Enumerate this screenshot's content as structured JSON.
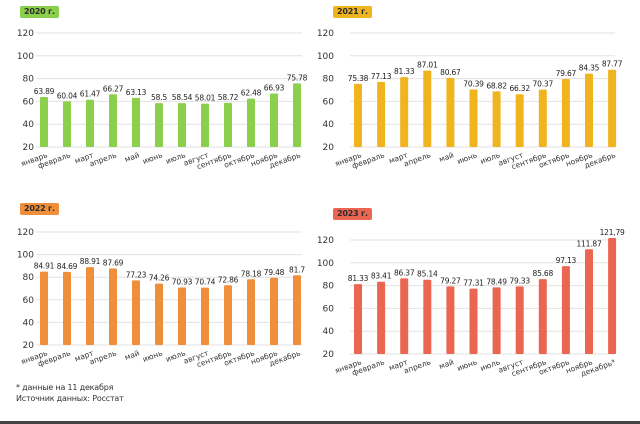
{
  "chart_data": [
    {
      "type": "bar",
      "title": "2020 г.",
      "color": "#8ccf4d",
      "categories": [
        "январь",
        "февраль",
        "март",
        "апрель",
        "май",
        "июнь",
        "июль",
        "август",
        "сентябрь",
        "октябрь",
        "ноябрь",
        "декабрь"
      ],
      "values": [
        63.89,
        60.04,
        61.47,
        66.27,
        63.13,
        58.5,
        58.54,
        58.01,
        58.72,
        62.48,
        66.93,
        75.78
      ],
      "value_labels": [
        "63.89",
        "60.04",
        "61.47",
        "66.27",
        "63.13",
        "58.5",
        "58.54",
        "58.01",
        "58.72",
        "62.48",
        "66.93",
        "75.78"
      ],
      "yticks": [
        20,
        40,
        60,
        80,
        100,
        120
      ],
      "ylim": [
        20,
        120
      ],
      "grid": true,
      "xlabel": "",
      "ylabel": ""
    },
    {
      "type": "bar",
      "title": "2021 г.",
      "color": "#f0b51e",
      "categories": [
        "январь",
        "февраль",
        "март",
        "апрель",
        "май",
        "июнь",
        "июль",
        "август",
        "сентябрь",
        "октябрь",
        "ноябрь",
        "декабрь"
      ],
      "values": [
        75.38,
        77.13,
        81.33,
        87.01,
        80.67,
        70.39,
        68.82,
        66.32,
        70.37,
        79.67,
        84.35,
        87.77
      ],
      "value_labels": [
        "75.38",
        "77.13",
        "81.33",
        "87.01",
        "80.67",
        "70.39",
        "68.82",
        "66.32",
        "70.37",
        "79.67",
        "84.35",
        "87.77"
      ],
      "yticks": [
        20,
        40,
        60,
        80,
        100,
        120
      ],
      "ylim": [
        20,
        120
      ],
      "grid": true,
      "xlabel": "",
      "ylabel": ""
    },
    {
      "type": "bar",
      "title": "2022 г.",
      "color": "#ef8f3c",
      "categories": [
        "январь",
        "февраль",
        "март",
        "апрель",
        "май",
        "июнь",
        "июль",
        "август",
        "сентябрь",
        "октябрь",
        "ноябрь",
        "декабрь"
      ],
      "values": [
        84.91,
        84.69,
        88.91,
        87.69,
        77.23,
        74.26,
        70.93,
        70.74,
        72.86,
        78.18,
        79.48,
        81.7
      ],
      "value_labels": [
        "84.91",
        "84.69",
        "88.91",
        "87.69",
        "77.23",
        "74.26",
        "70.93",
        "70.74",
        "72.86",
        "78.18",
        "79.48",
        "81.7"
      ],
      "yticks": [
        20,
        40,
        60,
        80,
        100,
        120
      ],
      "ylim": [
        20,
        120
      ],
      "grid": true,
      "xlabel": "",
      "ylabel": ""
    },
    {
      "type": "bar",
      "title": "2023 г.",
      "color": "#ea6650",
      "categories": [
        "январь",
        "февраль",
        "март",
        "апрель",
        "май",
        "июнь",
        "июль",
        "август",
        "сентябрь",
        "октябрь",
        "ноябрь",
        "декабрь*"
      ],
      "values": [
        81.33,
        83.41,
        86.37,
        85.14,
        79.27,
        77.31,
        78.49,
        79.33,
        85.68,
        97.13,
        111.87,
        121.79
      ],
      "value_labels": [
        "81.33",
        "83.41",
        "86.37",
        "85.14",
        "79.27",
        "77.31",
        "78.49",
        "79.33",
        "85.68",
        "97.13",
        "111.87",
        "121,79"
      ],
      "yticks": [
        20,
        40,
        60,
        80,
        100,
        120
      ],
      "ylim": [
        20,
        120
      ],
      "grid": true,
      "xlabel": "",
      "ylabel": ""
    }
  ],
  "footnotes": {
    "note": "* данные на 11 декабря",
    "source": "Источник данных: Росстат"
  },
  "colors": {
    "grid": "#e2e2e2",
    "axis_text": "#333333",
    "label_text": "#222222"
  }
}
